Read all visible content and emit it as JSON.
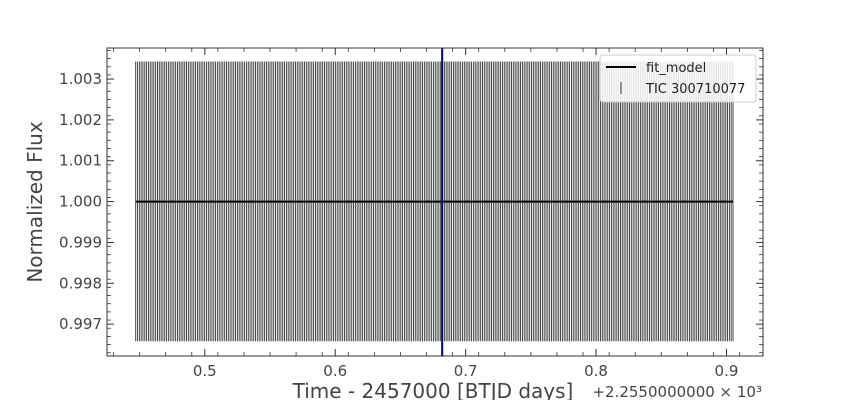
{
  "chart_data": {
    "type": "scatter",
    "xlabel": "Time - 2457000 [BTJD days]",
    "x_offset_label": "+2.2550000000 × 10³",
    "ylabel": "Normalized Flux",
    "xlim": [
      0.425,
      0.928
    ],
    "ylim": [
      0.99622,
      1.00376
    ],
    "x_ticks": [
      0.5,
      0.6,
      0.7,
      0.8,
      0.9
    ],
    "x_tick_labels": [
      "0.5",
      "0.6",
      "0.7",
      "0.8",
      "0.9"
    ],
    "y_ticks": [
      0.997,
      0.998,
      0.999,
      1.0,
      1.001,
      1.002,
      1.003
    ],
    "y_tick_labels": [
      "0.997",
      "0.998",
      "0.999",
      "1.000",
      "1.001",
      "1.002",
      "1.003"
    ],
    "grid": false,
    "legend_position": "top-right",
    "series": [
      {
        "name": "fit_model",
        "kind": "line",
        "color": "#000000",
        "x": [
          0.447,
          0.905
        ],
        "y": [
          1.0,
          1.0
        ]
      },
      {
        "name": "TIC 300710077",
        "kind": "errorbar",
        "color": "#333333",
        "x_start": 0.447,
        "x_end": 0.905,
        "n_points": 330,
        "y": 1.0,
        "yerr_low": 0.99658,
        "yerr_high": 1.00343
      }
    ],
    "vline": {
      "x": 0.682,
      "color": "#00008b"
    }
  }
}
